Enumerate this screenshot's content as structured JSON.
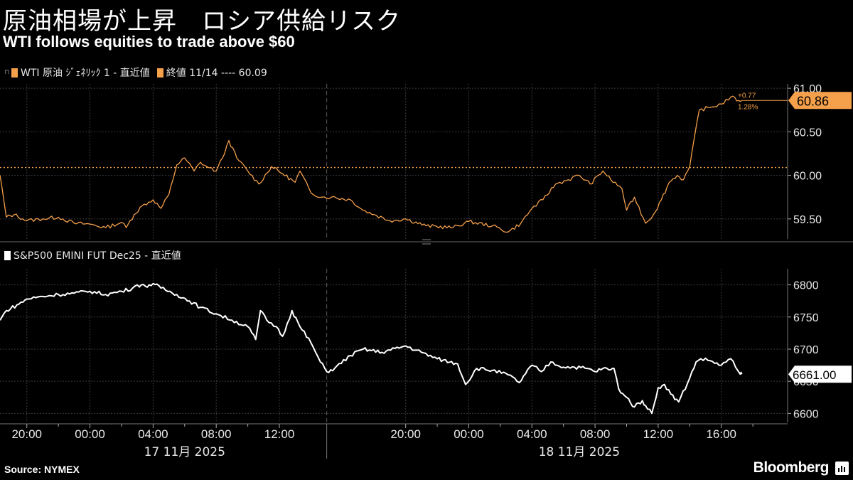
{
  "header": {
    "title": "原油相場が上昇　ロシア供給リスク",
    "subtitle": "WTI follows equities to trade above $60"
  },
  "legend_top": {
    "series_label": "WTI 原油 ｼﾞｪﾈﾘｯｸ 1 - 直近値",
    "close_label": "終値 11/14 ---- 60.09",
    "series_color": "#f5a04a",
    "close_color": "#f5a04a"
  },
  "legend_bottom": {
    "series_label": "S&P500 EMINI FUT Dec25 - 直近値",
    "series_color": "#ffffff"
  },
  "x_axis": {
    "tick_labels": [
      "20:00",
      "00:00",
      "04:00",
      "08:00",
      "12:00",
      "20:00",
      "00:00",
      "04:00",
      "08:00",
      "12:00",
      "16:00"
    ],
    "tick_hours": [
      -4,
      0,
      4,
      8,
      12,
      20,
      24,
      28,
      32,
      36,
      40
    ],
    "date_labels": [
      "17 11月 2025",
      "18 11月 2025"
    ],
    "date_hours": [
      6,
      31
    ],
    "session_break_hour": 15
  },
  "chart_data": [
    {
      "type": "line",
      "name": "WTI 原油 ｼﾞｪﾈﾘｯｸ 1 - 直近値",
      "color": "#f5a04a",
      "x_unit": "hours from 17 Nov 00:00",
      "xlim": [
        -5.7,
        44.2
      ],
      "ylim": [
        59.27,
        61.05
      ],
      "yticks": [
        59.5,
        60.0,
        60.5,
        61.0
      ],
      "ytick_labels": [
        "59.50",
        "60.00",
        "60.50",
        "61.00"
      ],
      "reference_line": {
        "label": "終値 11/14",
        "value": 60.09
      },
      "last_value": 60.86,
      "last_value_label": "60.86",
      "change_label": "+0.77",
      "change_pct_label": "1.28%",
      "x": [
        -5.7,
        -5.3,
        -4.8,
        -4,
        -3,
        -2,
        -1,
        0,
        1,
        2,
        2.3,
        2.8,
        3.3,
        4,
        4.5,
        5,
        5.5,
        6,
        6.6,
        7,
        7.4,
        8,
        8.4,
        8.8,
        9.3,
        10,
        10.7,
        11.5,
        12.2,
        13,
        13.3,
        14,
        14.7,
        15.3,
        16.5,
        17.3,
        18,
        19,
        20,
        21.3,
        23,
        24,
        25.5,
        26.5,
        27.3,
        28,
        28.7,
        29.5,
        30.3,
        31,
        31.7,
        32.5,
        33,
        33.7,
        34,
        34.5,
        35.2,
        35.7,
        36.2,
        36.7,
        37.2,
        37.6,
        38,
        38.6,
        39.3,
        40,
        40.6,
        41.1,
        41.3
      ],
      "y": [
        60.0,
        59.52,
        59.55,
        59.48,
        59.5,
        59.52,
        59.45,
        59.44,
        59.4,
        59.46,
        59.4,
        59.55,
        59.65,
        59.72,
        59.62,
        59.78,
        60.12,
        60.2,
        60.05,
        60.15,
        60.1,
        60.05,
        60.2,
        60.4,
        60.2,
        60.05,
        59.9,
        60.1,
        60.02,
        59.92,
        60.05,
        59.8,
        59.75,
        59.75,
        59.72,
        59.6,
        59.55,
        59.48,
        59.5,
        59.42,
        59.4,
        59.47,
        59.42,
        59.35,
        59.45,
        59.62,
        59.72,
        59.9,
        59.95,
        60.0,
        59.9,
        60.05,
        59.95,
        59.85,
        59.6,
        59.75,
        59.45,
        59.55,
        59.72,
        59.92,
        60.0,
        59.95,
        60.1,
        60.75,
        60.78,
        60.82,
        60.9,
        60.86,
        60.86
      ]
    },
    {
      "type": "line",
      "name": "S&P500 EMINI FUT Dec25 - 直近値",
      "color": "#ffffff",
      "x_unit": "hours from 17 Nov 00:00",
      "xlim": [
        -5.7,
        44.2
      ],
      "ylim": [
        6586,
        6825
      ],
      "yticks": [
        6600,
        6650,
        6700,
        6750,
        6800
      ],
      "ytick_labels": [
        "6600",
        "6650",
        "6700",
        "6750",
        "6800"
      ],
      "last_value": 6661.0,
      "last_value_label": "6661.00",
      "x": [
        -5.7,
        -5.3,
        -4.5,
        -4,
        -3,
        -2,
        -1,
        0,
        1,
        2,
        2.7,
        3,
        3.5,
        4,
        4.5,
        5.5,
        6.3,
        7,
        8,
        9,
        10,
        10.5,
        10.8,
        11.2,
        11.8,
        12.2,
        12.8,
        13.3,
        14,
        14.6,
        15,
        15.5,
        16.5,
        17.3,
        18.5,
        20,
        21,
        22,
        23.3,
        23.8,
        24.5,
        25.5,
        26.5,
        27.2,
        28,
        28.6,
        29.2,
        30,
        30.7,
        31.5,
        32,
        32.5,
        33,
        33.2,
        33.5,
        34,
        34.5,
        35,
        35.2,
        35.6,
        36,
        36.4,
        36.8,
        37.3,
        38,
        38.4,
        38.7,
        39.3,
        40,
        40.6,
        41.2,
        41.3
      ],
      "y": [
        6745,
        6760,
        6770,
        6778,
        6782,
        6785,
        6787,
        6790,
        6785,
        6790,
        6795,
        6800,
        6798,
        6802,
        6795,
        6785,
        6775,
        6765,
        6755,
        6745,
        6735,
        6715,
        6760,
        6745,
        6735,
        6720,
        6760,
        6735,
        6710,
        6680,
        6665,
        6670,
        6690,
        6700,
        6695,
        6705,
        6695,
        6685,
        6677,
        6645,
        6670,
        6667,
        6660,
        6648,
        6675,
        6665,
        6680,
        6672,
        6672,
        6670,
        6665,
        6670,
        6668,
        6670,
        6638,
        6625,
        6610,
        6620,
        6612,
        6600,
        6640,
        6645,
        6630,
        6618,
        6655,
        6680,
        6685,
        6682,
        6675,
        6685,
        6661,
        6661
      ]
    }
  ]
}
